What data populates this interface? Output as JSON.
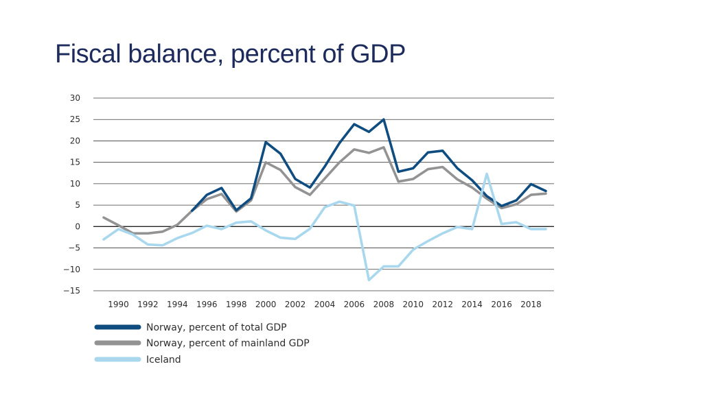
{
  "slide": {
    "title": "Fiscal balance, percent of GDP"
  },
  "chart_data": {
    "type": "line",
    "title": "Fiscal balance, percent of GDP",
    "xlabel": "",
    "ylabel": "",
    "ylim": [
      -15,
      30
    ],
    "xlim": [
      1989,
      2019
    ],
    "y_ticks": [
      30,
      25,
      20,
      15,
      10,
      5,
      0,
      -5,
      -10,
      -15
    ],
    "y_tick_labels": [
      "30",
      "25",
      "20",
      "15",
      "10",
      "5",
      "0",
      "−5",
      "−10",
      "−15"
    ],
    "x_ticks": [
      1990,
      1992,
      1994,
      1996,
      1998,
      2000,
      2002,
      2004,
      2006,
      2008,
      2010,
      2012,
      2014,
      2016,
      2018
    ],
    "x_tick_labels": [
      "1990",
      "1992",
      "1994",
      "1996",
      "1998",
      "2000",
      "2002",
      "2004",
      "2006",
      "2008",
      "2010",
      "2012",
      "2014",
      "2016",
      "2018"
    ],
    "grid": true,
    "series": [
      {
        "name": "Norway, percent of total GDP",
        "color": "#0f4d80",
        "x": [
          1995,
          1996,
          1997,
          1998,
          1999,
          2000,
          2001,
          2002,
          2003,
          2004,
          2005,
          2006,
          2007,
          2008,
          2009,
          2010,
          2011,
          2012,
          2013,
          2014,
          2015,
          2016,
          2017,
          2018,
          2019
        ],
        "values": [
          3.7,
          7.4,
          9.0,
          3.8,
          6.6,
          19.7,
          17.0,
          11.1,
          9.1,
          14.0,
          19.5,
          23.9,
          22.1,
          25.0,
          12.8,
          13.6,
          17.3,
          17.7,
          13.6,
          10.8,
          7.1,
          4.8,
          6.1,
          9.9,
          8.3
        ]
      },
      {
        "name": "Norway, percent of mainland GDP",
        "color": "#939393",
        "x": [
          1989,
          1990,
          1991,
          1992,
          1993,
          1994,
          1995,
          1996,
          1997,
          1998,
          1999,
          2000,
          2001,
          2002,
          2003,
          2004,
          2005,
          2006,
          2007,
          2008,
          2009,
          2010,
          2011,
          2012,
          2013,
          2014,
          2015,
          2016,
          2017,
          2018,
          2019
        ],
        "values": [
          2.1,
          0.3,
          -1.6,
          -1.6,
          -1.2,
          0.4,
          3.7,
          6.4,
          7.6,
          3.5,
          6.1,
          15.0,
          13.2,
          9.2,
          7.4,
          11.2,
          15.0,
          18.0,
          17.2,
          18.5,
          10.5,
          11.1,
          13.4,
          13.9,
          11.0,
          9.1,
          6.5,
          4.3,
          5.2,
          7.4,
          7.7
        ]
      },
      {
        "name": "Iceland",
        "color": "#a9d8ee",
        "x": [
          1989,
          1990,
          1991,
          1992,
          1993,
          1994,
          1995,
          1996,
          1997,
          1998,
          1999,
          2000,
          2001,
          2002,
          2003,
          2004,
          2005,
          2006,
          2007,
          2008,
          2009,
          2010,
          2011,
          2012,
          2013,
          2014,
          2015,
          2016,
          2017,
          2018,
          2019
        ],
        "values": [
          -3.0,
          -0.6,
          -1.9,
          -4.2,
          -4.4,
          -2.7,
          -1.5,
          0.2,
          -0.6,
          0.9,
          1.2,
          -0.9,
          -2.6,
          -2.9,
          -0.5,
          4.5,
          5.8,
          4.9,
          -12.5,
          -9.3,
          -9.3,
          -5.4,
          -3.4,
          -1.6,
          -0.1,
          -0.6,
          12.3,
          0.6,
          1.0,
          -0.6,
          -0.6
        ]
      }
    ],
    "legend": {
      "position": "bottom-left",
      "entries": [
        "Norway, percent of total GDP",
        "Norway, percent of mainland GDP",
        "Iceland"
      ]
    }
  }
}
